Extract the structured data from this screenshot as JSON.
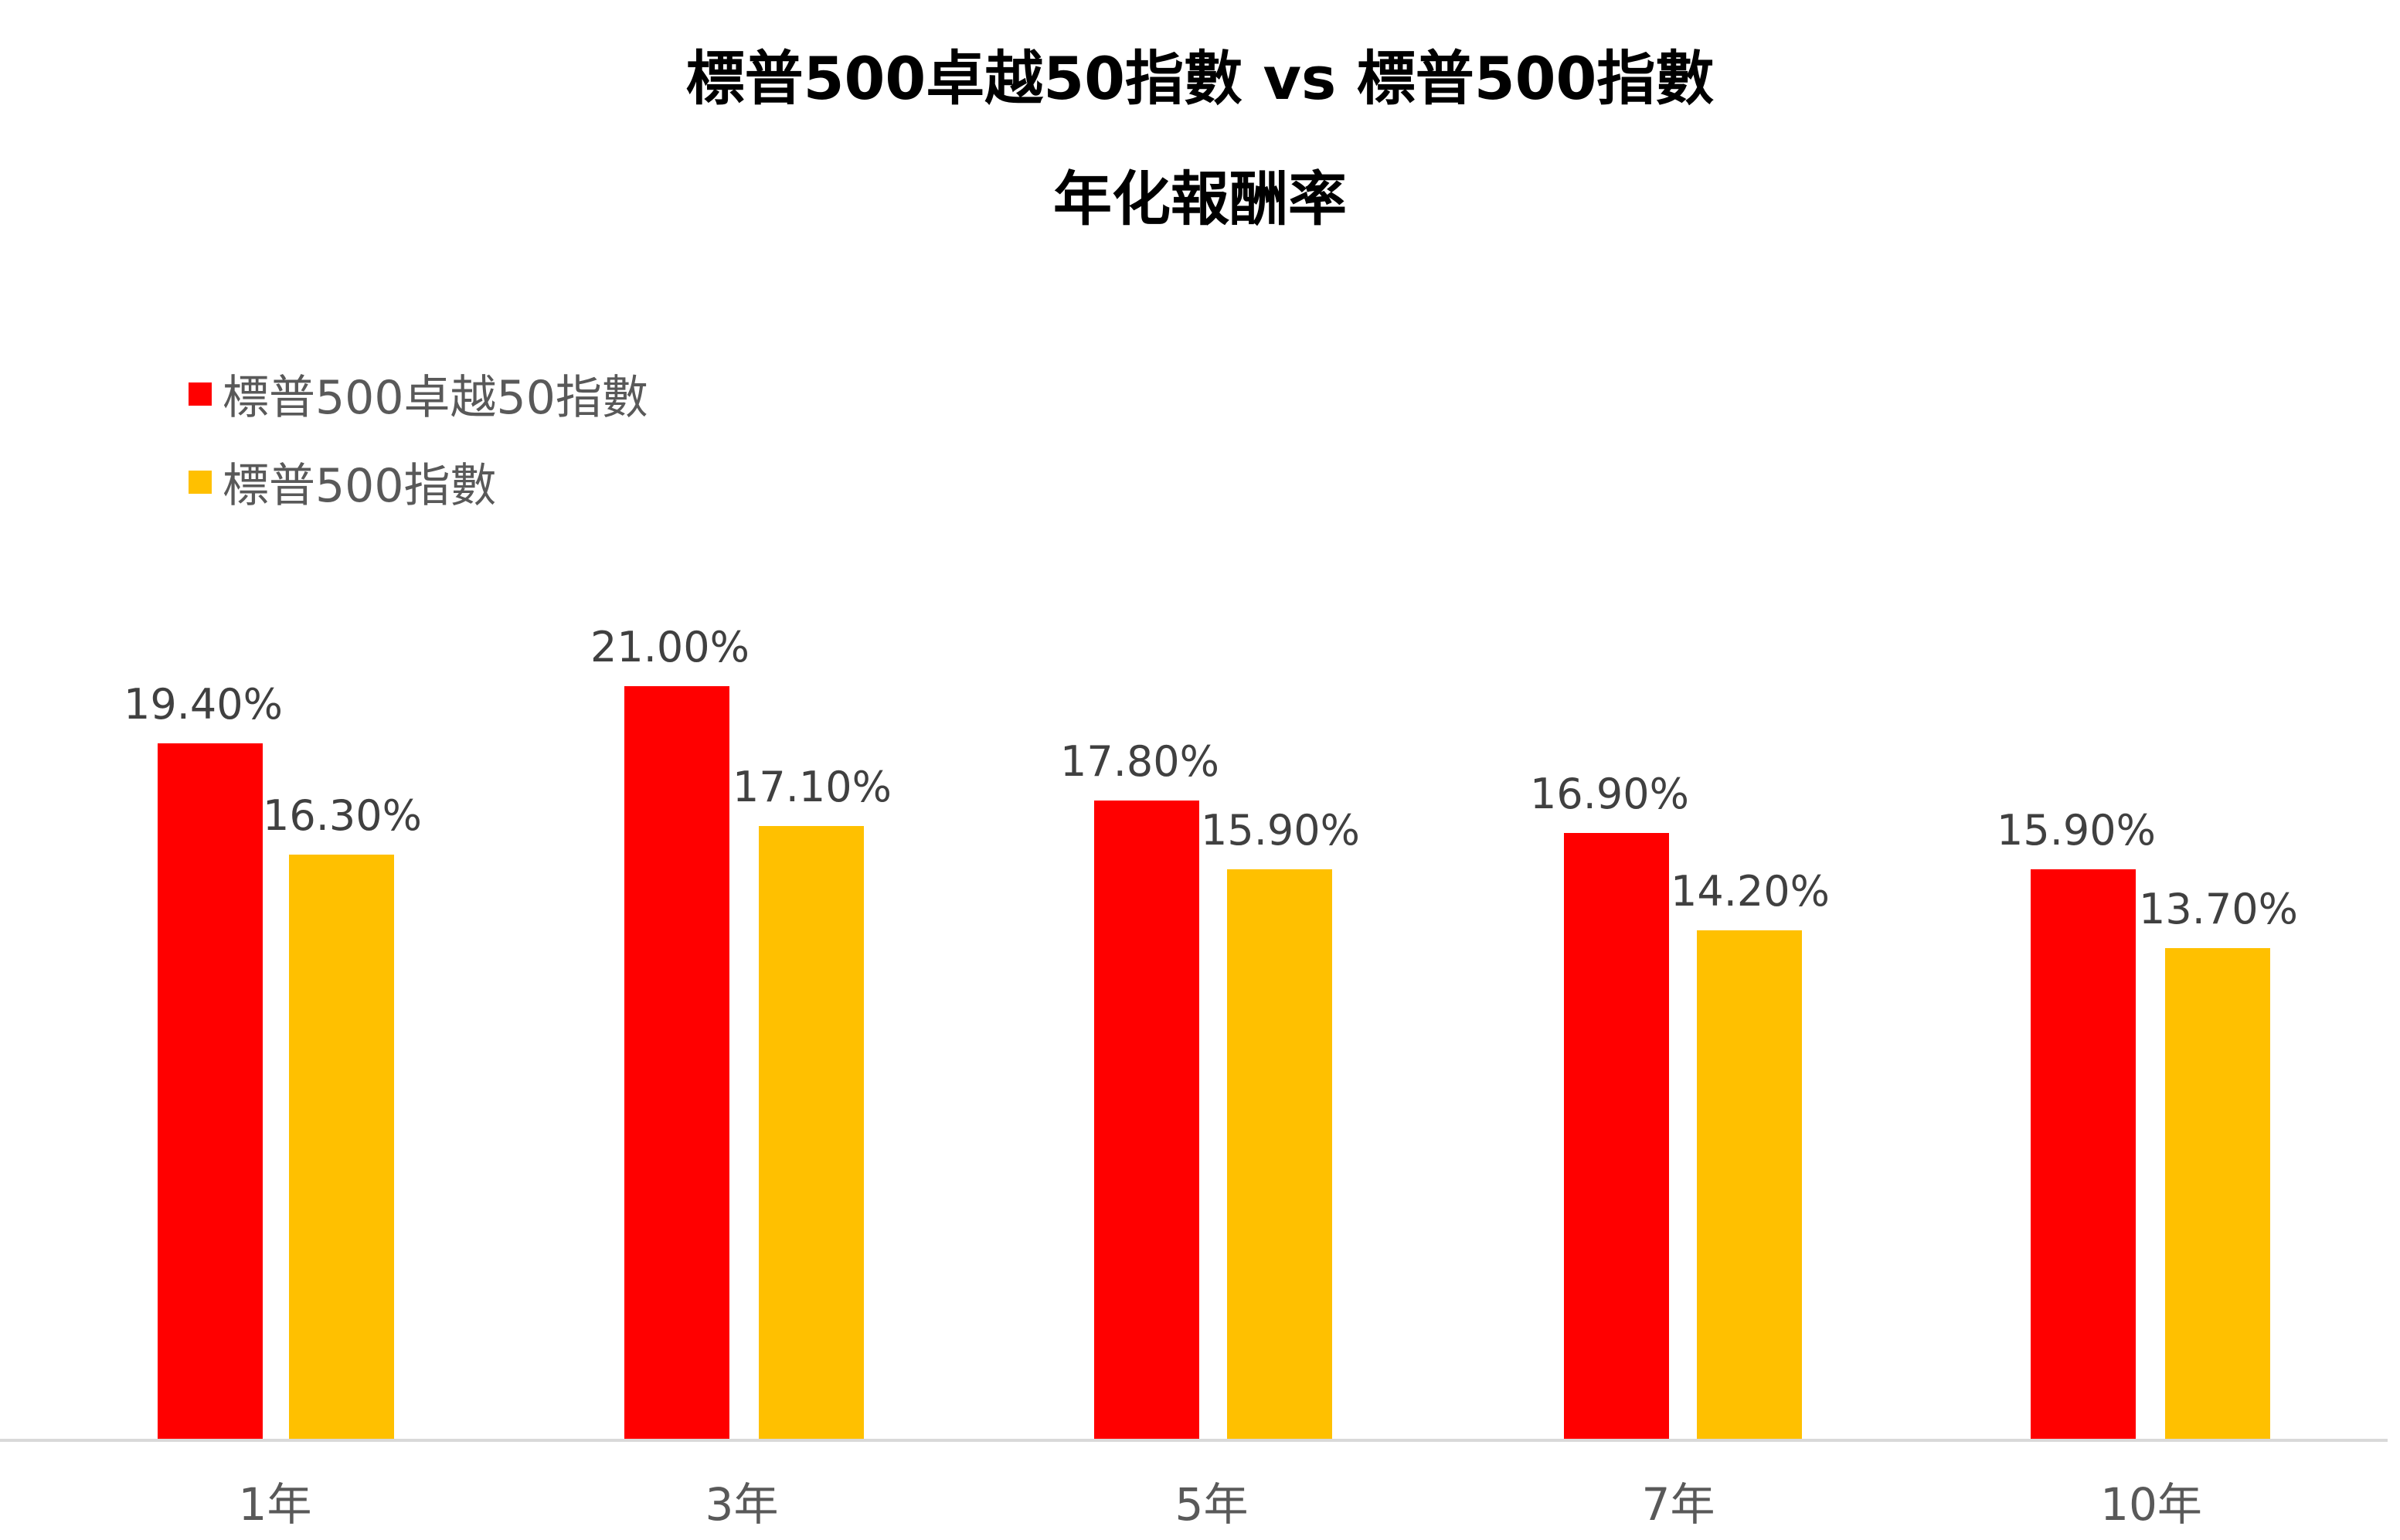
{
  "chart_data": {
    "type": "bar",
    "title": "標普500卓越50指數 vs 標普500指數",
    "subtitle": "年化報酬率",
    "xlabel": "",
    "ylabel": "",
    "categories": [
      "1年",
      "3年",
      "5年",
      "7年",
      "10年"
    ],
    "series": [
      {
        "name": "標普500卓越50指數",
        "color": "#FF0000",
        "values": [
          19.4,
          21.0,
          17.8,
          16.9,
          15.9
        ],
        "labels": [
          "19.40%",
          "21.00%",
          "17.80%",
          "16.90%",
          "15.90%"
        ]
      },
      {
        "name": "標普500指數",
        "color": "#FFC000",
        "values": [
          16.3,
          17.1,
          15.9,
          14.2,
          13.7
        ],
        "labels": [
          "16.30%",
          "17.10%",
          "15.90%",
          "14.20%",
          "13.70%"
        ]
      }
    ],
    "ylim": [
      0,
      22
    ],
    "grid": false,
    "legend_position": "top-left"
  },
  "title": {
    "line1": "標普500卓越50指數 vs 標普500指數",
    "line2": "年化報酬率"
  },
  "legend": [
    {
      "label": "標普500卓越50指數",
      "color": "#FF0000"
    },
    {
      "label": "標普500指數",
      "color": "#FFC000"
    }
  ]
}
